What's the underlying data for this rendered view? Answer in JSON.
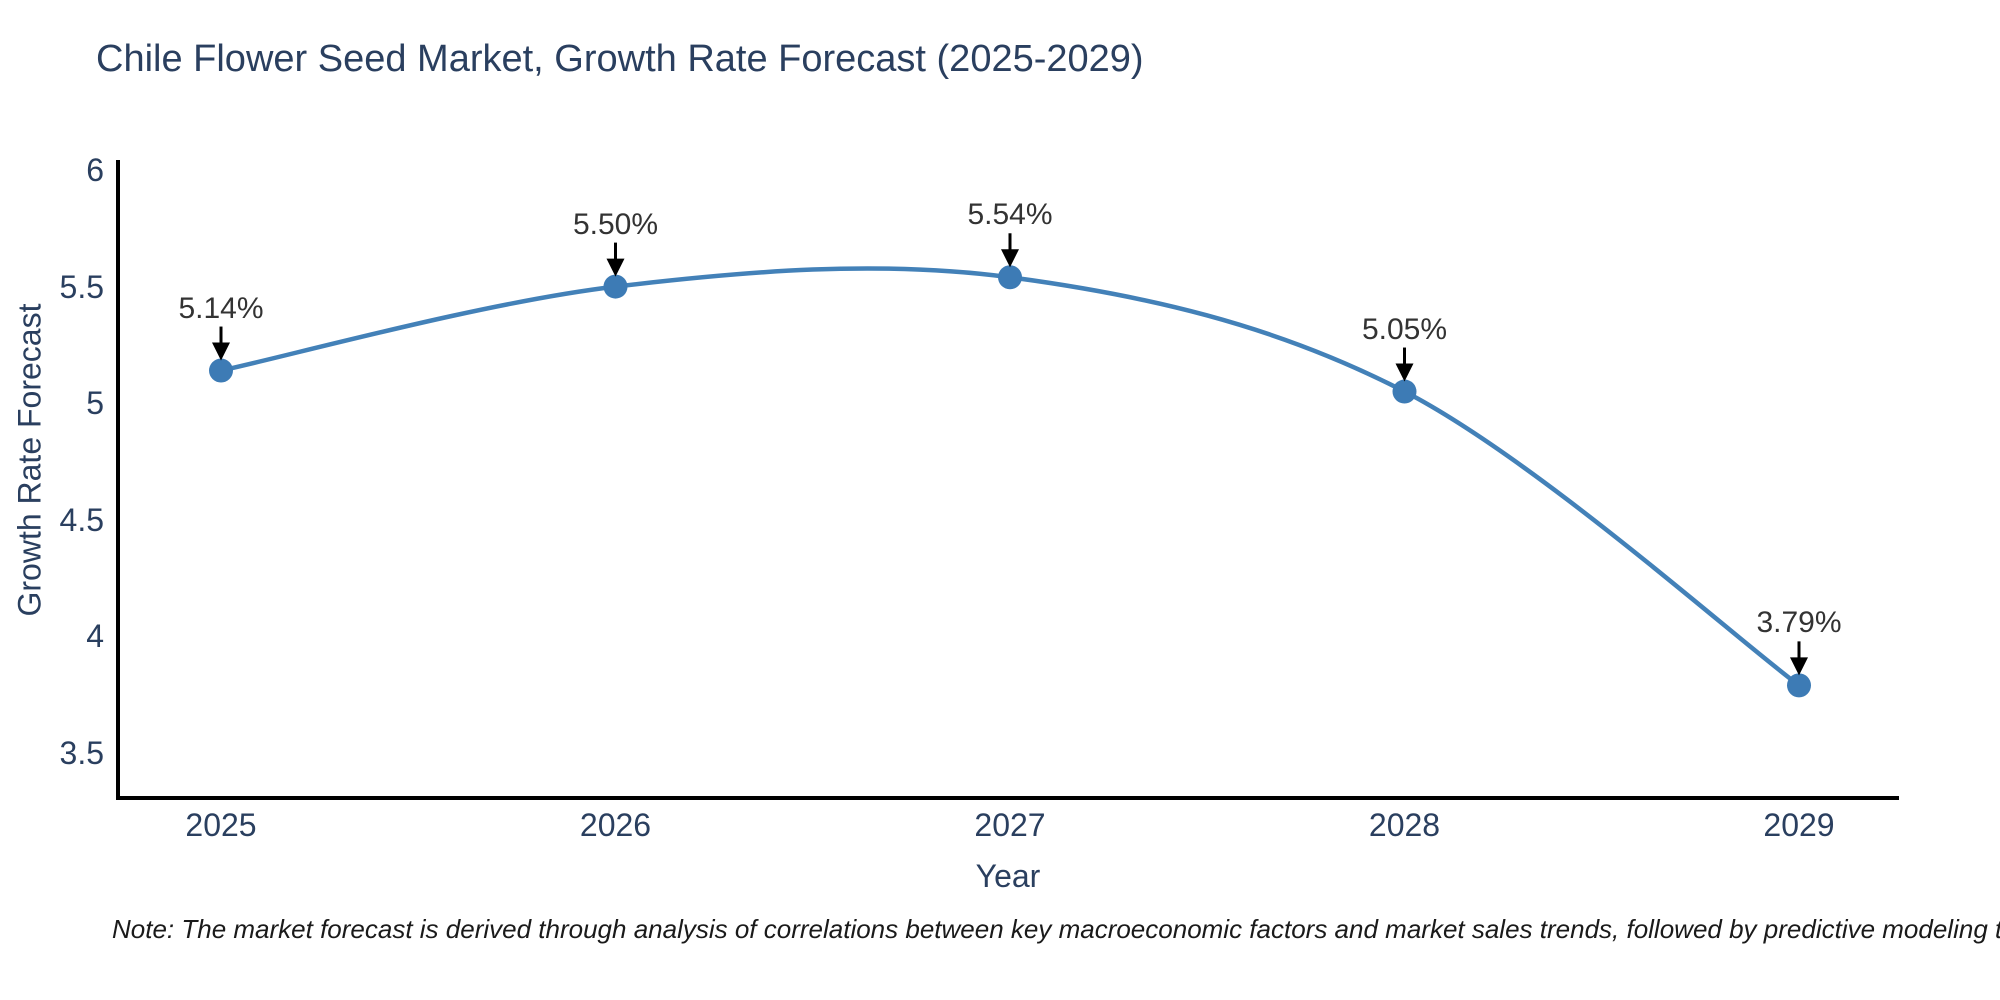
{
  "title": "Chile Flower Seed Market, Growth Rate Forecast (2025-2029)",
  "note": "Note: The market forecast is derived through analysis of correlations between key macroeconomic factors and market sales trends, followed by predictive modeling to project future sales",
  "chart_data": {
    "type": "line",
    "title": "Chile Flower Seed Market, Growth Rate Forecast (2025-2029)",
    "x": [
      2025,
      2026,
      2027,
      2028,
      2029
    ],
    "values": [
      5.14,
      5.5,
      5.54,
      5.05,
      3.79
    ],
    "point_labels": [
      "5.14%",
      "5.50%",
      "5.54%",
      "5.05%",
      "3.79%"
    ],
    "xlabel": "Year",
    "ylabel": "Growth Rate Forecast",
    "xticks": [
      2025,
      2026,
      2027,
      2028,
      2029
    ],
    "yticks": [
      3.5,
      4,
      4.5,
      5,
      5.5,
      6
    ],
    "xlim": [
      2024.74,
      2029.25
    ],
    "ylim": [
      3.31,
      6.04
    ],
    "line_shape": "spline",
    "grid": false,
    "legend": false,
    "markers": true,
    "annotations_arrows": true,
    "line_color": "#4381b8",
    "marker_color": "#3d7bb5",
    "arrow_color": "#000000",
    "axis_color": "#000000",
    "text_color": "#2a3f5f"
  }
}
